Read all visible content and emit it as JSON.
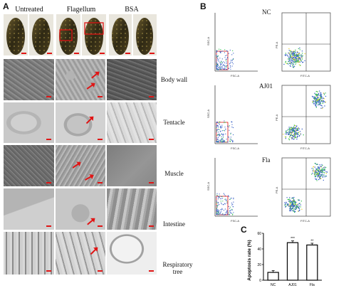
{
  "panels": {
    "a": {
      "label": "A"
    },
    "b": {
      "label": "B"
    },
    "c": {
      "label": "C"
    }
  },
  "columns": [
    "Untreated",
    "Flagellum",
    "BSA"
  ],
  "tissues": [
    "Body wall",
    "Tentacle",
    "Muscle",
    "Intestine",
    "Respiratory tree"
  ],
  "flow_groups": [
    "NC",
    "AJ01",
    "Fla"
  ],
  "chart_data": {
    "type": "bar",
    "categories": [
      "NC",
      "AJ01",
      "Fla"
    ],
    "values": [
      10,
      48,
      45
    ],
    "ylabel": "Apoptosis rate (%)",
    "ylim": [
      0,
      60
    ],
    "yticks": [
      0,
      20,
      40,
      60
    ],
    "annotations": [
      "***",
      "**"
    ],
    "colors": {
      "bar_fill": "#ffffff",
      "bar_stroke": "#000000"
    }
  },
  "colors": {
    "scale_bar": "#e01515",
    "gate": "#e01515",
    "specimen": "#3a2e18"
  }
}
